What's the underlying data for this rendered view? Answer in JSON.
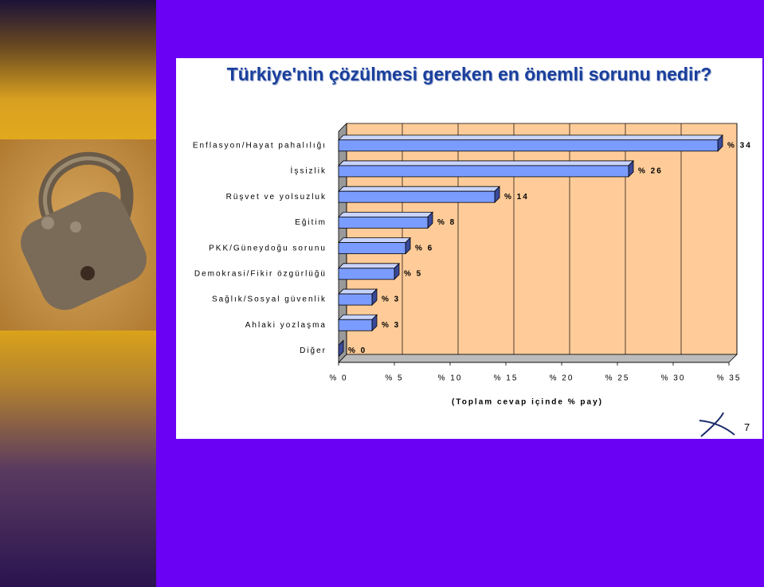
{
  "title": "Türkiye'nin çözülmesi gereken en önemli sorunu nedir?",
  "page_number": "7",
  "chart_data": {
    "type": "bar",
    "orientation": "horizontal",
    "categories": [
      "Enflasyon/Hayat pahalılığı",
      "İşsizlik",
      "Rüşvet ve yolsuzluk",
      "Eğitim",
      "PKK/Güneydoğu sorunu",
      "Demokrasi/Fikir özgürlüğü",
      "Sağlık/Sosyal güvenlik",
      "Ahlaki yozlaşma",
      "Diğer"
    ],
    "values": [
      34,
      26,
      14,
      8,
      6,
      5,
      3,
      3,
      0
    ],
    "value_labels": [
      "% 34",
      "% 26",
      "% 14",
      "% 8",
      "% 6",
      "% 5",
      "% 3",
      "% 3",
      "% 0"
    ],
    "color": "#7b9cff",
    "xlabel": "(Toplam cevap içinde % pay)",
    "xlim": [
      0,
      35
    ],
    "xticks": [
      {
        "value": 0,
        "label": "% 0"
      },
      {
        "value": 5,
        "label": "% 5"
      },
      {
        "value": 10,
        "label": "% 10"
      },
      {
        "value": 15,
        "label": "% 15"
      },
      {
        "value": 20,
        "label": "% 20"
      },
      {
        "value": 25,
        "label": "% 25"
      },
      {
        "value": 30,
        "label": "% 30"
      },
      {
        "value": 35,
        "label": "% 35"
      }
    ],
    "grid": true
  }
}
